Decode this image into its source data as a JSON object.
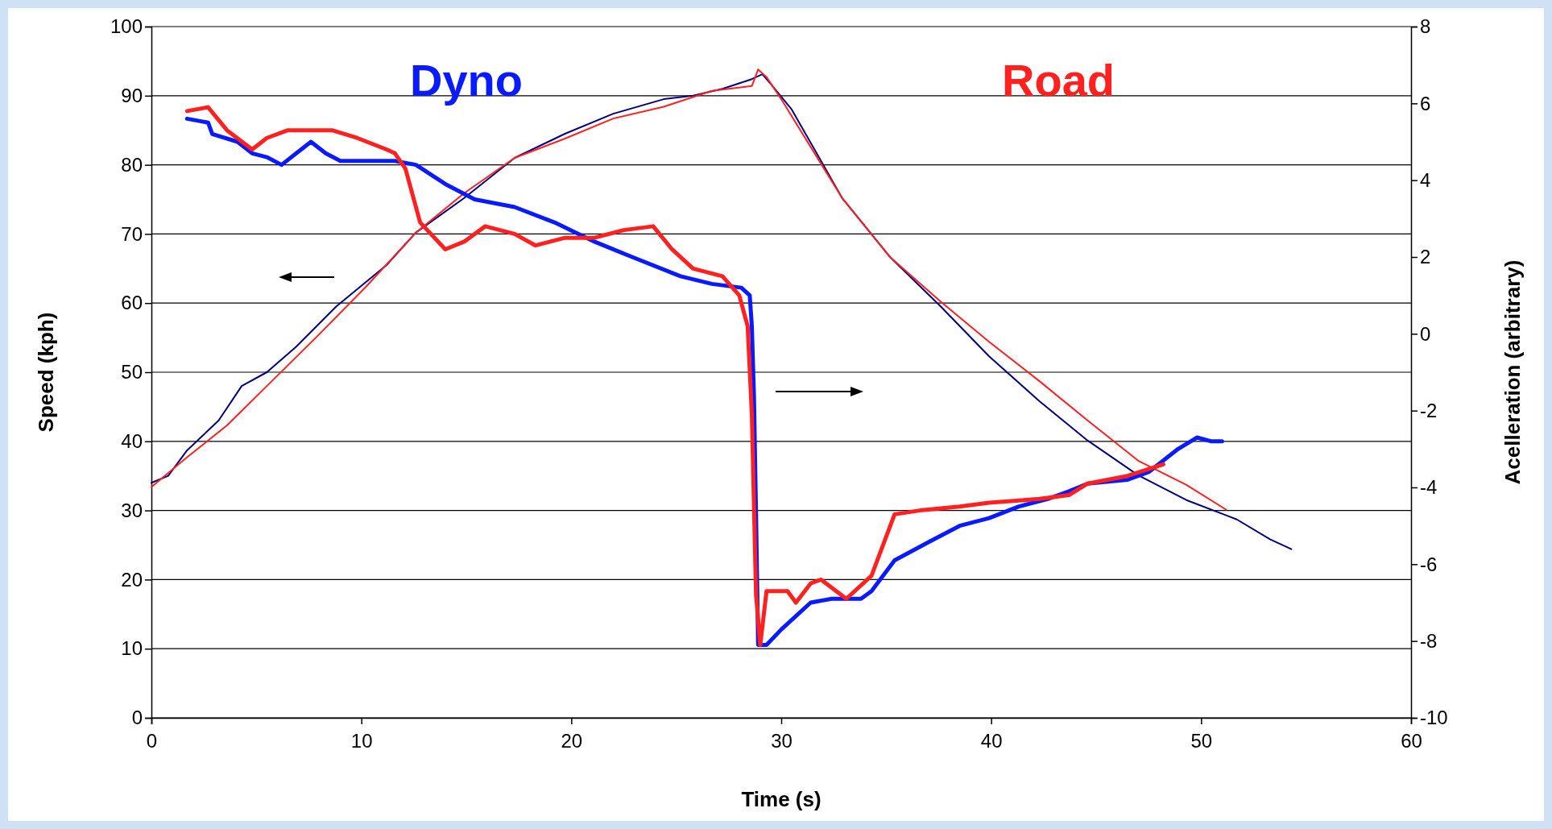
{
  "chart_data": {
    "type": "line",
    "xlabel": "Time (s)",
    "ylabel": "Speed (kph)",
    "y2label": "Acelleration (arbitrary)",
    "xlim": [
      0,
      60
    ],
    "xticks": [
      0,
      10,
      20,
      30,
      40,
      50,
      60
    ],
    "ylim": [
      0,
      100
    ],
    "yticks": [
      0,
      10,
      20,
      30,
      40,
      50,
      60,
      70,
      80,
      90,
      100
    ],
    "y2lim": [
      -10,
      8
    ],
    "y2ticks": [
      -10,
      -8,
      -6,
      -4,
      -2,
      0,
      2,
      4,
      6,
      8
    ],
    "grid": "y",
    "marker": "none",
    "line_style": "solid",
    "series": [
      {
        "color": "#000080",
        "x": [
          0,
          0.8,
          1.7,
          3.2,
          4.3,
          5.5,
          6.9,
          8.8,
          11.2,
          12.6,
          14.9,
          17.3,
          19.7,
          22,
          24.4,
          25.8,
          27.2,
          28.6,
          29.1,
          29.5,
          30.5,
          32.9,
          35.2,
          37.6,
          39.9,
          42.3,
          44.6,
          47,
          49.3,
          51.7,
          53.3,
          54.3
        ],
        "values": [
          34,
          35,
          38.7,
          43,
          48,
          50,
          53.7,
          59.5,
          65.5,
          70.2,
          75.2,
          81,
          84.5,
          87.4,
          89.5,
          90,
          91,
          92.4,
          93.1,
          91.7,
          88,
          75.2,
          66.6,
          59.5,
          52.3,
          45.8,
          40.1,
          35.1,
          31.5,
          28.7,
          25.8,
          24.4
        ]
      },
      {
        "color": "#ff2020",
        "x": [
          0,
          1.7,
          3.6,
          5.5,
          7.9,
          10.2,
          12.6,
          14.9,
          17.3,
          19.7,
          22,
          24.4,
          26.7,
          28.6,
          28.9,
          29.3,
          30,
          32.9,
          35.2,
          37.6,
          39.9,
          42.3,
          44.6,
          47,
          49.3,
          51.2
        ],
        "values": [
          33.4,
          37.7,
          42.3,
          48,
          55.2,
          62.3,
          70.2,
          75.9,
          81,
          83.8,
          86.7,
          88.4,
          90.7,
          91.4,
          93.8,
          92.7,
          89.5,
          75.2,
          66.6,
          60.2,
          54.4,
          48.7,
          43,
          37.2,
          33.7,
          30.1
        ]
      },
      {
        "name": "Dyno",
        "color": "#0a1aff",
        "axis": "y2",
        "x": [
          1.7,
          2.7,
          2.9,
          4.1,
          4.8,
          5.5,
          6.2,
          6.9,
          7.6,
          8.3,
          9,
          10.9,
          11.6,
          12.6,
          14,
          15.4,
          17.3,
          19.2,
          21.1,
          22.9,
          25.2,
          26.7,
          28.1,
          28.5,
          28.6,
          28.7,
          28.8,
          28.9,
          29.3,
          30,
          31.4,
          32.4,
          33.8,
          34.3,
          35.4,
          37.1,
          38.5,
          39.9,
          41.3,
          42.7,
          43.7,
          44.6,
          46.5,
          47.5,
          48.9,
          49.8,
          50.5,
          51
        ],
        "values": [
          5.6,
          5.5,
          5.2,
          5,
          4.7,
          4.6,
          4.4,
          4.7,
          5,
          4.7,
          4.5,
          4.5,
          4.5,
          4.4,
          3.9,
          3.5,
          3.3,
          2.9,
          2.4,
          2,
          1.5,
          1.3,
          1.2,
          1,
          0.2,
          -1.6,
          -4.7,
          -8.1,
          -8.1,
          -7.7,
          -7,
          -6.9,
          -6.9,
          -6.7,
          -5.9,
          -5.4,
          -5,
          -4.8,
          -4.5,
          -4.3,
          -4.1,
          -3.9,
          -3.8,
          -3.6,
          -3,
          -2.7,
          -2.8,
          -2.8
        ]
      },
      {
        "name": "Road",
        "color": "#ff2020",
        "axis": "y2",
        "x": [
          1.7,
          2.7,
          3.6,
          4.8,
          5.5,
          6.5,
          8.6,
          9.8,
          11.2,
          11.6,
          12.1,
          12.8,
          14,
          14.9,
          15.9,
          17.3,
          18.3,
          19.7,
          21.1,
          22.5,
          23.9,
          24.8,
          25.8,
          27.2,
          28,
          28.4,
          28.6,
          28.8,
          29,
          29.3,
          30.3,
          30.7,
          31.4,
          31.9,
          33.1,
          34.3,
          35.4,
          36.6,
          38.5,
          39.9,
          42.3,
          43.7,
          44.6,
          46.5,
          48.2
        ],
        "values": [
          5.8,
          5.9,
          5.3,
          4.8,
          5.1,
          5.3,
          5.3,
          5.1,
          4.8,
          4.7,
          4.3,
          2.9,
          2.2,
          2.4,
          2.8,
          2.6,
          2.3,
          2.5,
          2.5,
          2.7,
          2.8,
          2.2,
          1.7,
          1.5,
          1,
          0.2,
          -2.1,
          -6.8,
          -8.1,
          -6.7,
          -6.7,
          -7,
          -6.5,
          -6.4,
          -6.9,
          -6.3,
          -4.7,
          -4.6,
          -4.5,
          -4.4,
          -4.3,
          -4.2,
          -3.9,
          -3.7,
          -3.4
        ]
      }
    ]
  }
}
